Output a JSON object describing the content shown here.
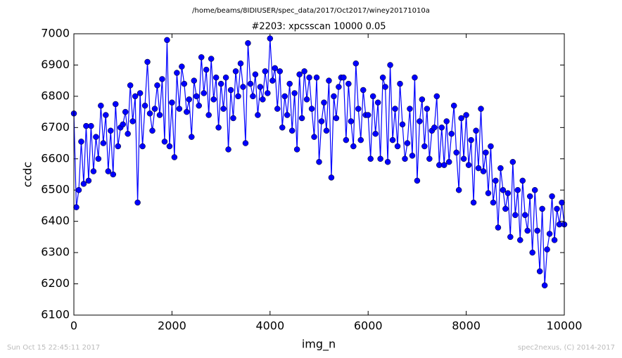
{
  "chart_data": {
    "type": "line",
    "suptitle": "/home/beams/8IDIUSER/spec_data/2017/Oct2017/winey20171010a",
    "title": "#2203: xpcsscan 10000 0.05",
    "x_label": "img_n",
    "y_label": "ccdc",
    "footer_left": "Sun Oct 15 22:45:11 2017",
    "footer_right": "spec2nexus, (C) 2014-2017",
    "xlim": [
      0,
      10000
    ],
    "xticks": [
      0,
      2000,
      4000,
      6000,
      8000,
      10000
    ],
    "ylim": [
      6100,
      7000
    ],
    "yticks": [
      6100,
      6200,
      6300,
      6400,
      6500,
      6600,
      6700,
      6800,
      6900,
      7000
    ],
    "marker": "circle",
    "series": [
      {
        "color": "#0000ff",
        "x": [
          0,
          50,
          100,
          150,
          200,
          250,
          300,
          350,
          400,
          450,
          500,
          550,
          600,
          650,
          700,
          750,
          800,
          850,
          900,
          950,
          1000,
          1050,
          1100,
          1150,
          1200,
          1250,
          1300,
          1350,
          1400,
          1450,
          1500,
          1550,
          1600,
          1650,
          1700,
          1750,
          1800,
          1850,
          1900,
          1950,
          2000,
          2050,
          2100,
          2150,
          2200,
          2250,
          2300,
          2350,
          2400,
          2450,
          2500,
          2550,
          2600,
          2650,
          2700,
          2750,
          2800,
          2850,
          2900,
          2950,
          3000,
          3050,
          3100,
          3150,
          3200,
          3250,
          3300,
          3350,
          3400,
          3450,
          3500,
          3550,
          3600,
          3650,
          3700,
          3750,
          3800,
          3850,
          3900,
          3950,
          4000,
          4050,
          4100,
          4150,
          4200,
          4250,
          4300,
          4350,
          4400,
          4450,
          4500,
          4550,
          4600,
          4650,
          4700,
          4750,
          4800,
          4850,
          4900,
          4950,
          5000,
          5050,
          5100,
          5150,
          5200,
          5250,
          5300,
          5350,
          5400,
          5450,
          5500,
          5550,
          5600,
          5650,
          5700,
          5750,
          5800,
          5850,
          5900,
          5950,
          6000,
          6050,
          6100,
          6150,
          6200,
          6250,
          6300,
          6350,
          6400,
          6450,
          6500,
          6550,
          6600,
          6650,
          6700,
          6750,
          6800,
          6850,
          6900,
          6950,
          7000,
          7050,
          7100,
          7150,
          7200,
          7250,
          7300,
          7350,
          7400,
          7450,
          7500,
          7550,
          7600,
          7650,
          7700,
          7750,
          7800,
          7850,
          7900,
          7950,
          8000,
          8050,
          8100,
          8150,
          8200,
          8250,
          8300,
          8350,
          8400,
          8450,
          8500,
          8550,
          8600,
          8650,
          8700,
          8750,
          8800,
          8850,
          8900,
          8950,
          9000,
          9050,
          9100,
          9150,
          9200,
          9250,
          9300,
          9350,
          9400,
          9450,
          9500,
          9550,
          9600,
          9650,
          9700,
          9750,
          9800,
          9850,
          9900,
          9950,
          10000
        ],
        "values": [
          6745,
          6445,
          6500,
          6655,
          6520,
          6705,
          6530,
          6705,
          6560,
          6670,
          6600,
          6770,
          6650,
          6740,
          6560,
          6690,
          6550,
          6775,
          6640,
          6700,
          6710,
          6750,
          6680,
          6835,
          6720,
          6800,
          6460,
          6810,
          6640,
          6770,
          6910,
          6745,
          6690,
          6760,
          6835,
          6740,
          6855,
          6655,
          6980,
          6640,
          6780,
          6605,
          6875,
          6760,
          6895,
          6840,
          6750,
          6790,
          6670,
          6850,
          6800,
          6770,
          6925,
          6810,
          6885,
          6740,
          6920,
          6790,
          6860,
          6700,
          6840,
          6760,
          6860,
          6630,
          6820,
          6730,
          6880,
          6800,
          6905,
          6830,
          6650,
          6970,
          6840,
          6800,
          6870,
          6740,
          6830,
          6790,
          6880,
          6810,
          6985,
          6850,
          6890,
          6760,
          6880,
          6700,
          6800,
          6740,
          6840,
          6690,
          6810,
          6630,
          6870,
          6730,
          6880,
          6790,
          6860,
          6760,
          6670,
          6860,
          6590,
          6720,
          6780,
          6690,
          6850,
          6540,
          6800,
          6730,
          6830,
          6860,
          6860,
          6660,
          6840,
          6720,
          6640,
          6905,
          6760,
          6660,
          6820,
          6740,
          6740,
          6600,
          6800,
          6680,
          6780,
          6600,
          6860,
          6830,
          6590,
          6900,
          6660,
          6760,
          6640,
          6840,
          6710,
          6600,
          6650,
          6760,
          6610,
          6860,
          6530,
          6720,
          6790,
          6640,
          6760,
          6600,
          6690,
          6700,
          6800,
          6580,
          6700,
          6580,
          6720,
          6590,
          6680,
          6770,
          6620,
          6500,
          6730,
          6600,
          6740,
          6580,
          6660,
          6460,
          6690,
          6570,
          6760,
          6560,
          6620,
          6490,
          6640,
          6460,
          6530,
          6380,
          6570,
          6500,
          6440,
          6490,
          6350,
          6590,
          6420,
          6500,
          6340,
          6530,
          6420,
          6370,
          6480,
          6300,
          6500,
          6370,
          6240,
          6440,
          6195,
          6310,
          6360,
          6480,
          6340,
          6440,
          6390,
          6460,
          6390
        ]
      }
    ]
  }
}
